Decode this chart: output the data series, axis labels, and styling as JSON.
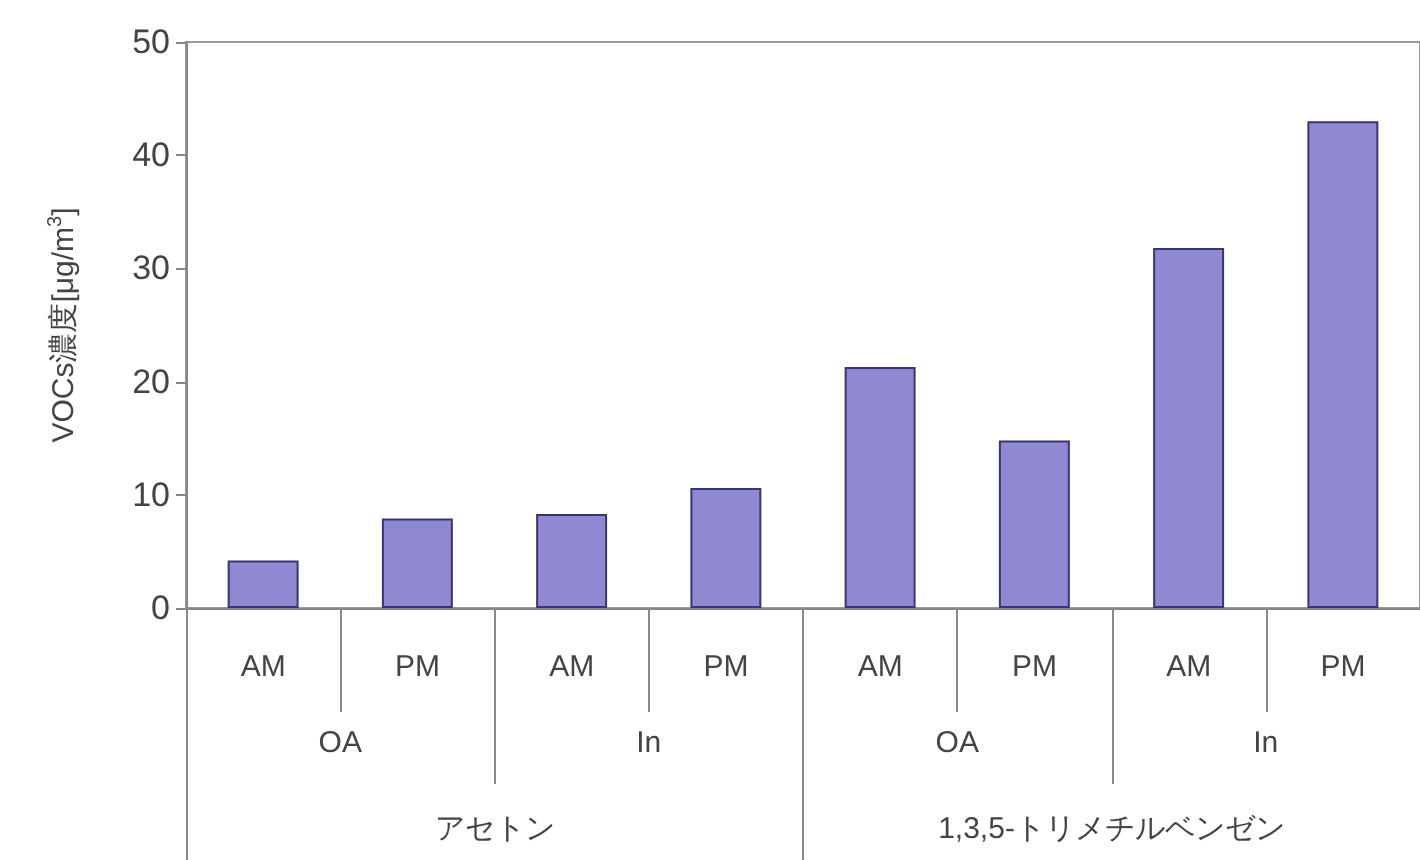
{
  "chart_data": {
    "type": "bar",
    "ylabel": "VOCs濃度[μg/m$^{3}$]",
    "categories": [
      "AM",
      "PM",
      "AM",
      "PM",
      "AM",
      "PM",
      "AM",
      "PM"
    ],
    "values": [
      4.2,
      7.9,
      8.3,
      10.6,
      21.3,
      14.8,
      31.8,
      43.0
    ],
    "color": "#8f88d2",
    "ylim": [
      0,
      50
    ],
    "yticks": [
      0,
      10,
      20,
      30,
      40,
      50
    ],
    "annotations": [
      "OA",
      "In",
      "OA",
      "In",
      "アセトン",
      "1,3,5-トリメチルベンゼン"
    ]
  }
}
